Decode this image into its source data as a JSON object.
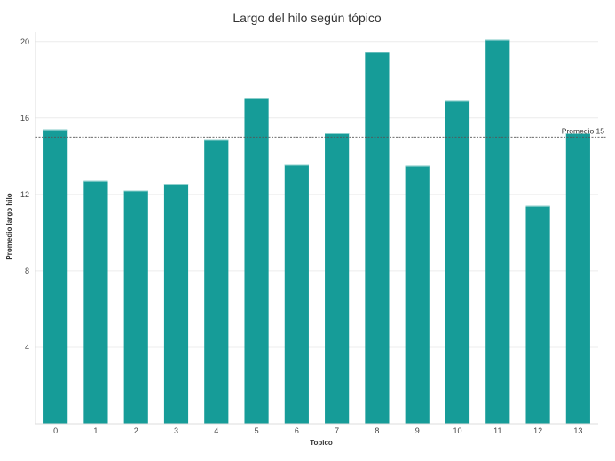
{
  "chart_data": {
    "type": "bar",
    "title": "Largo del hilo según tópico",
    "xlabel": "Topico",
    "ylabel": "Promedio largo hilo",
    "categories": [
      "0",
      "1",
      "2",
      "3",
      "4",
      "5",
      "6",
      "7",
      "8",
      "9",
      "10",
      "11",
      "12",
      "13"
    ],
    "values": [
      15.4,
      12.7,
      12.2,
      12.55,
      14.85,
      17.05,
      13.55,
      15.2,
      19.45,
      13.5,
      16.9,
      20.1,
      11.4,
      15.2
    ],
    "ylim": [
      0,
      20.5
    ],
    "yticks": [
      4,
      8,
      12,
      16,
      20
    ],
    "reference_line": {
      "value": 15,
      "label": "Promedio 15"
    },
    "bar_color": "#169c98",
    "grid": true
  }
}
